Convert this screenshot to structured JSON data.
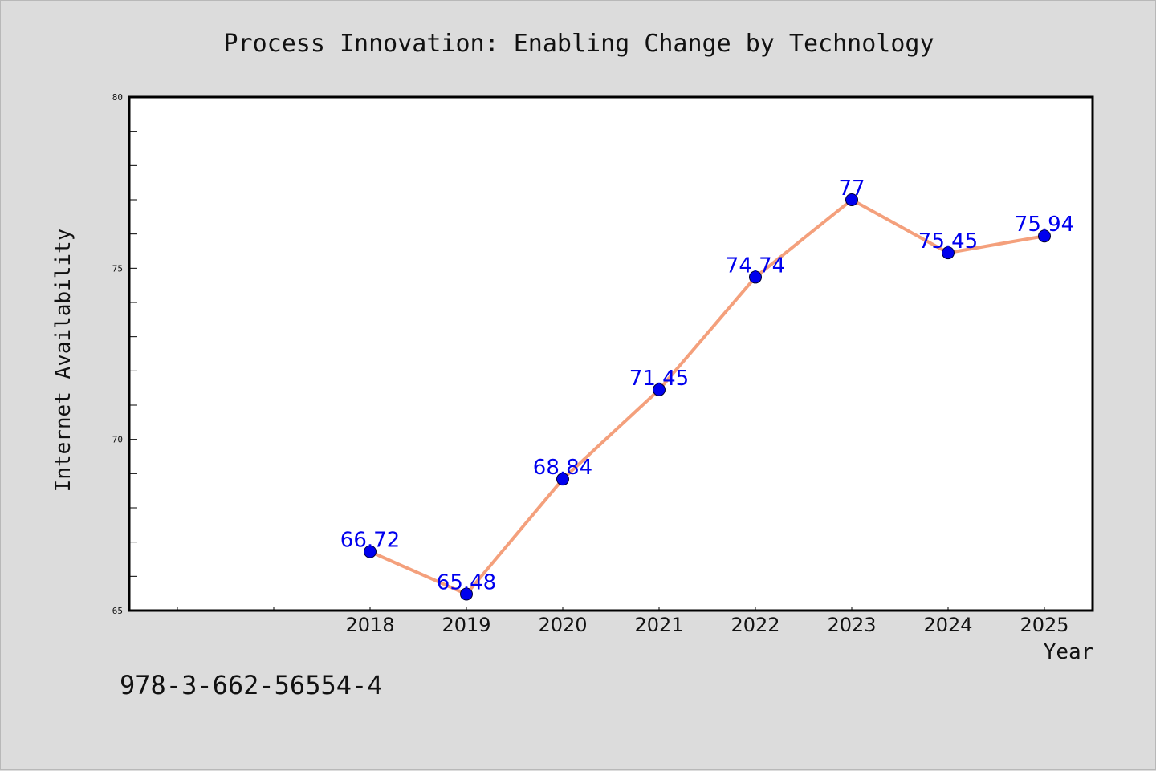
{
  "chart_data": {
    "type": "line",
    "title": "Process Innovation: Enabling Change by Technology",
    "xlabel": "Year",
    "ylabel": "Internet Availability",
    "x_ticks": [
      "2018",
      "2019",
      "2020",
      "2021",
      "2022",
      "2023",
      "2024",
      "2025"
    ],
    "y_ticks": [
      "65",
      "70",
      "75",
      "80"
    ],
    "ylim": [
      65,
      80
    ],
    "grid": false,
    "series": [
      {
        "x": [
          "2018",
          "2019",
          "2020",
          "2021",
          "2022",
          "2023",
          "2024",
          "2025"
        ],
        "values": [
          66.72,
          65.48,
          68.84,
          71.45,
          74.74,
          77,
          75.45,
          75.94
        ],
        "labels": [
          "66.72",
          "65.48",
          "68.84",
          "71.45",
          "74.74",
          "77",
          "75.45",
          "75.94"
        ],
        "line_color": "#f4a07c",
        "marker_color": "#0000ee",
        "label_color": "#0000ee"
      }
    ],
    "annotation": "978-3-662-56554-4"
  },
  "colors": {
    "figure_background": "#dcdcdc",
    "plot_background": "#ffffff",
    "axis": "#000000",
    "text": "#111111"
  }
}
